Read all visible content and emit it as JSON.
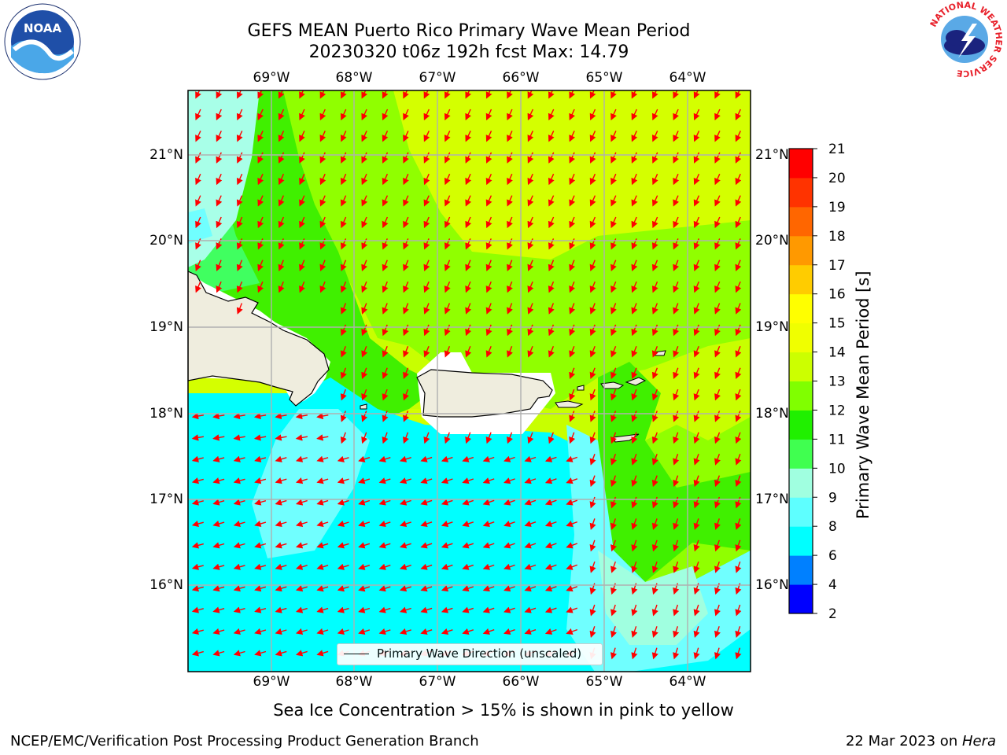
{
  "header": {
    "title_line1": "GEFS MEAN Puerto Rico Primary Wave Mean Period",
    "title_line2": "20230320 t06z 192h fcst   Max: 14.79"
  },
  "logos": {
    "left": "NOAA",
    "right": "NATIONAL WEATHER SERVICE"
  },
  "map": {
    "lon_labels": [
      "69°W",
      "68°W",
      "67°W",
      "66°W",
      "65°W",
      "64°W"
    ],
    "lat_labels": [
      "21°N",
      "20°N",
      "19°N",
      "18°N",
      "17°N",
      "16°N"
    ],
    "land_color": "#efedde",
    "arrow_color": "#ff0000"
  },
  "legend": {
    "label": "Primary Wave Direction (unscaled)"
  },
  "colorbar": {
    "label": "Primary Wave Mean Period [s]",
    "ticks": [
      "2",
      "4",
      "6",
      "8",
      "9",
      "10",
      "11",
      "12",
      "13",
      "14",
      "15",
      "16",
      "17",
      "18",
      "19",
      "20",
      "21"
    ],
    "colors": [
      "#0000ff",
      "#0080ff",
      "#00ffff",
      "#5effff",
      "#a0ffe0",
      "#40ff50",
      "#20f000",
      "#80ff00",
      "#ccff00",
      "#f0ff00",
      "#ffff00",
      "#ffcc00",
      "#ff9900",
      "#ff6600",
      "#ff3300",
      "#ff0000"
    ]
  },
  "note": "Sea Ice Concentration > 15% is shown in pink to yellow",
  "footer": {
    "left": "NCEP/EMC/Verification Post Processing Product Generation Branch",
    "right_prefix": "22 Mar 2023 on ",
    "right_host": "Hera"
  }
}
